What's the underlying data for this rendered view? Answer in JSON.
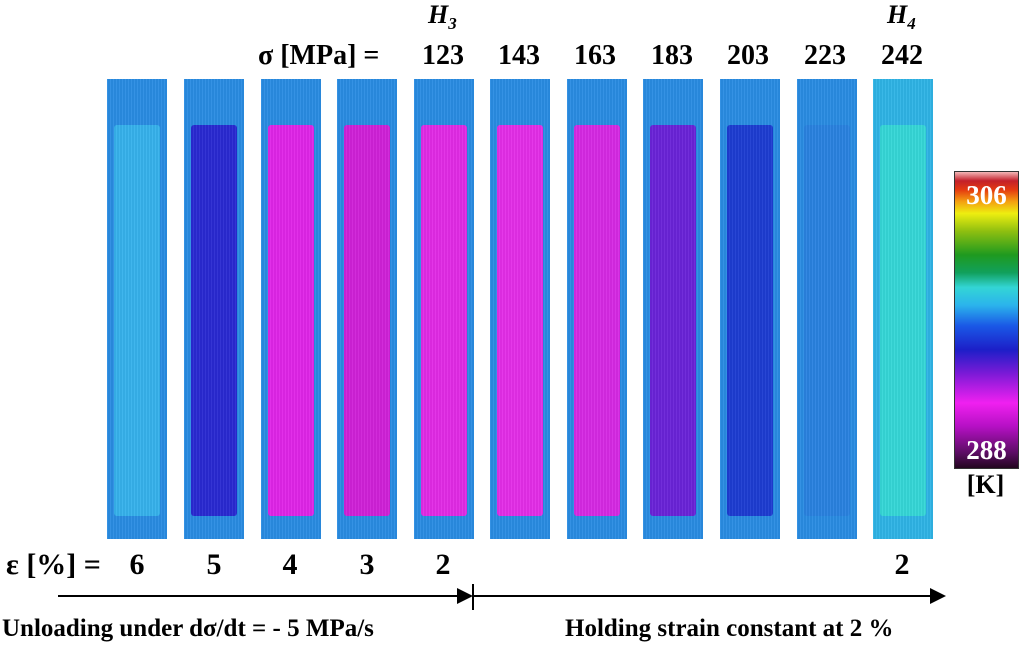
{
  "header": {
    "h3_label": "H",
    "h3_sub": "3",
    "h4_label": "H",
    "h4_sub": "4",
    "stress_prefix": "σ [MPa] =",
    "stress_values": [
      "123",
      "143",
      "163",
      "183",
      "203",
      "223",
      "242"
    ]
  },
  "strips": [
    {
      "id": "1",
      "frame_color": "#2a8ce3",
      "core_color": "#36b2ec"
    },
    {
      "id": "2",
      "frame_color": "#2a8ce3",
      "core_color": "#2a2ad2"
    },
    {
      "id": "3",
      "frame_color": "#2a8ce3",
      "core_color": "#e025e8"
    },
    {
      "id": "4",
      "frame_color": "#2a8ce3",
      "core_color": "#d021d8"
    },
    {
      "id": "5",
      "frame_color": "#2a8ce3",
      "core_color": "#e22be6"
    },
    {
      "id": "6",
      "frame_color": "#2a8ce3",
      "core_color": "#e42ee8"
    },
    {
      "id": "7",
      "frame_color": "#2a8ce3",
      "core_color": "#d62ae4"
    },
    {
      "id": "8",
      "frame_color": "#2a8ce3",
      "core_color": "#6a23d8"
    },
    {
      "id": "9",
      "frame_color": "#2a8ce3",
      "core_color": "#1d3cd2"
    },
    {
      "id": "10",
      "frame_color": "#2a8ce3",
      "core_color": "#2a82e0"
    },
    {
      "id": "11",
      "frame_color": "#2fb4e6",
      "core_color": "#35d7d7"
    }
  ],
  "strain": {
    "prefix": "ε [%] =",
    "values": [
      "6",
      "5",
      "4",
      "3",
      "2"
    ],
    "last_value": "2"
  },
  "captions": {
    "left": "Unloading under dσ/dt = - 5 MPa/s",
    "right": "Holding strain constant at 2 %"
  },
  "scale": {
    "max": "306",
    "min": "288",
    "unit": "[K]"
  }
}
